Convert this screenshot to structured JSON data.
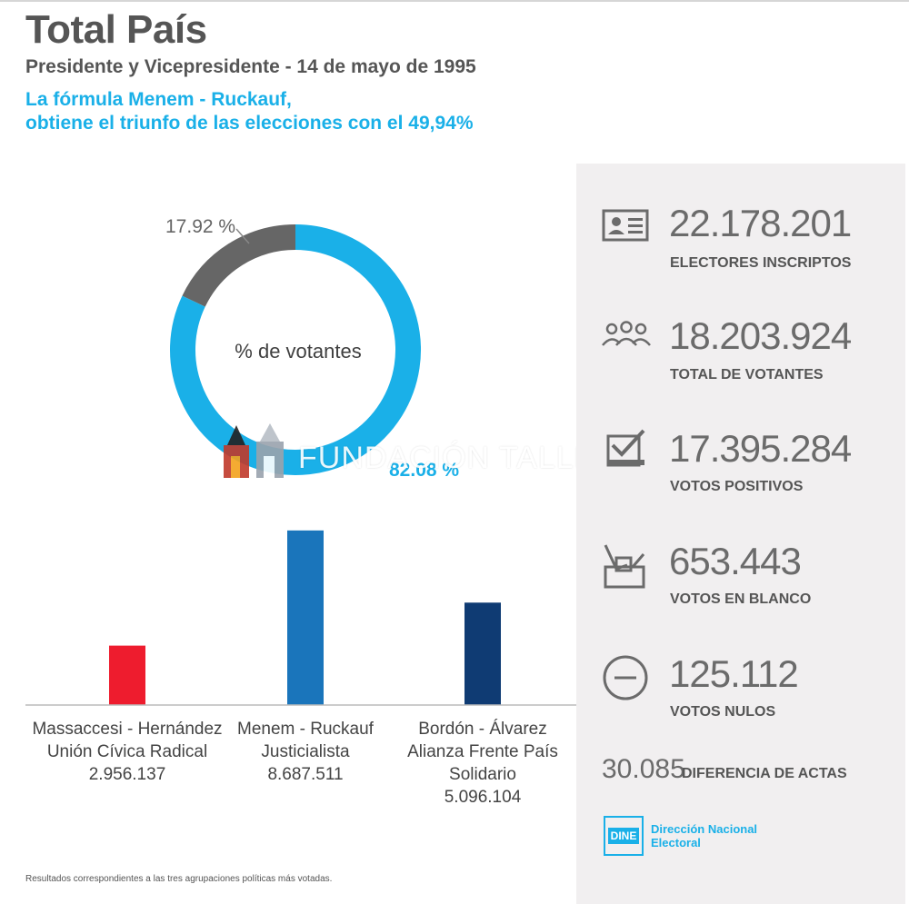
{
  "header": {
    "title": "Total País",
    "subtitle": "Presidente y Vicepresidente - 14 de mayo de 1995",
    "headline_line1": "La fórmula Menem - Ruckauf,",
    "headline_line2": "obtiene el triunfo de las elecciones con el 49,94%"
  },
  "watermark": {
    "text": "FUNDACIÓN TALLER"
  },
  "chart_data": [
    {
      "type": "pie",
      "variant": "donut",
      "center_label": "% de votantes",
      "slices": [
        {
          "label": "17.92 %",
          "value": 17.92,
          "color": "#666666"
        },
        {
          "label": "82.08 %",
          "value": 82.08,
          "color": "#1ab0e8"
        }
      ]
    },
    {
      "type": "bar",
      "categories": [
        {
          "line1": "Massaccesi - Hernández",
          "line2": "Unión Cívica Radical",
          "line3": "",
          "value_label": "2.956.137"
        },
        {
          "line1": "Menem - Ruckauf",
          "line2": "Justicialista",
          "line3": "",
          "value_label": "8.687.511"
        },
        {
          "line1": "Bordón - Álvarez",
          "line2": "Alianza Frente País",
          "line3": "Solidario",
          "value_label": "5.096.104"
        }
      ],
      "values": [
        2956137,
        8687511,
        5096104
      ],
      "colors": [
        "#ee1c2e",
        "#1a75bb",
        "#0f3b73"
      ]
    }
  ],
  "stats": [
    {
      "icon": "id-card-icon",
      "value": "22.178.201",
      "label": "ELECTORES INSCRIPTOS"
    },
    {
      "icon": "people-icon",
      "value": "18.203.924",
      "label": "TOTAL DE VOTANTES"
    },
    {
      "icon": "checked-ballot-icon",
      "value": "17.395.284",
      "label": "VOTOS POSITIVOS"
    },
    {
      "icon": "ballot-box-icon",
      "value": "653.443",
      "label": "VOTOS EN BLANCO"
    },
    {
      "icon": "minus-circle-icon",
      "value": "125.112",
      "label": "VOTOS NULOS"
    }
  ],
  "difference": {
    "value": "30.085",
    "label": "DIFERENCIA DE ACTAS"
  },
  "dine": {
    "abbr": "DINE",
    "line1": "Dirección Nacional",
    "line2": "Electoral"
  },
  "footnote": "Resultados correspondientes a las tres agrupaciones políticas más votadas.",
  "colors": {
    "accent": "#1ab0e8",
    "panel": "#f1eff0",
    "text": "#555555"
  }
}
